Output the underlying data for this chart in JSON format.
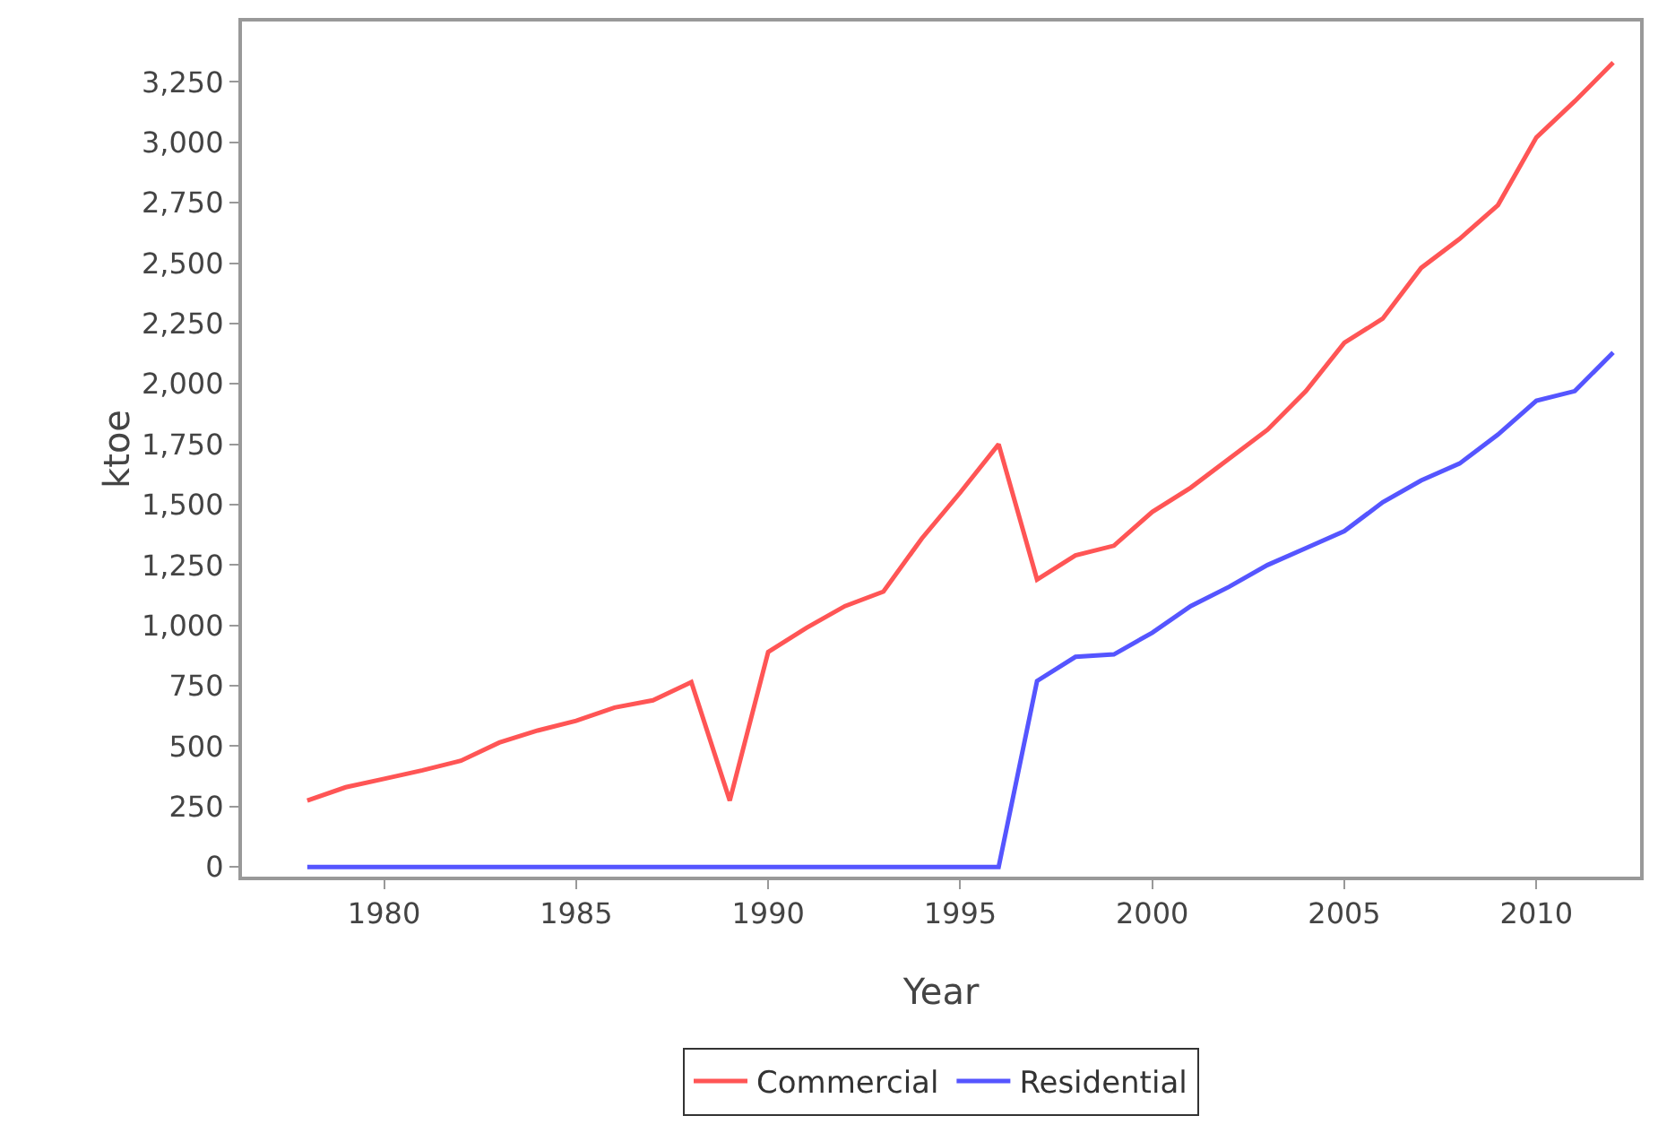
{
  "chart_data": {
    "type": "line",
    "xlabel": "Year",
    "ylabel": "ktoe",
    "x": [
      1978,
      1979,
      1980,
      1981,
      1982,
      1983,
      1984,
      1985,
      1986,
      1987,
      1988,
      1989,
      1990,
      1991,
      1992,
      1993,
      1994,
      1995,
      1996,
      1997,
      1998,
      1999,
      2000,
      2001,
      2002,
      2003,
      2004,
      2005,
      2006,
      2007,
      2008,
      2009,
      2010,
      2011,
      2012
    ],
    "series": [
      {
        "name": "Commercial",
        "color": "#ff5555",
        "values": [
          275,
          330,
          365,
          400,
          440,
          515,
          565,
          605,
          660,
          690,
          765,
          275,
          890,
          990,
          1080,
          1140,
          1360,
          1550,
          1750,
          1190,
          1290,
          1330,
          1470,
          1570,
          1690,
          1810,
          1970,
          2170,
          2270,
          2480,
          2600,
          2740,
          3020,
          3170,
          3330
        ]
      },
      {
        "name": "Residential",
        "color": "#5555ff",
        "values": [
          0,
          0,
          0,
          0,
          0,
          0,
          0,
          0,
          0,
          0,
          0,
          0,
          0,
          0,
          0,
          0,
          0,
          0,
          0,
          770,
          870,
          880,
          970,
          1080,
          1160,
          1250,
          1320,
          1390,
          1510,
          1600,
          1670,
          1790,
          1930,
          1970,
          2130
        ]
      }
    ],
    "xlim": [
      1976.3,
      2012.7
    ],
    "xticks": [
      1980,
      1985,
      1990,
      1995,
      2000,
      2005,
      2010
    ],
    "ylim": [
      -40,
      3500
    ],
    "yticks": [
      {
        "value": 0,
        "label": "0"
      },
      {
        "value": 250,
        "label": "250"
      },
      {
        "value": 500,
        "label": "500"
      },
      {
        "value": 750,
        "label": "750"
      },
      {
        "value": 1000,
        "label": "1,000"
      },
      {
        "value": 1250,
        "label": "1,250"
      },
      {
        "value": 1500,
        "label": "1,500"
      },
      {
        "value": 1750,
        "label": "1,750"
      },
      {
        "value": 2000,
        "label": "2,000"
      },
      {
        "value": 2250,
        "label": "2,250"
      },
      {
        "value": 2500,
        "label": "2,500"
      },
      {
        "value": 2750,
        "label": "2,750"
      },
      {
        "value": 3000,
        "label": "3,000"
      },
      {
        "value": 3250,
        "label": "3,250"
      }
    ],
    "grid": false,
    "legend": "bottom",
    "marker": "none",
    "line_style": "solid"
  }
}
